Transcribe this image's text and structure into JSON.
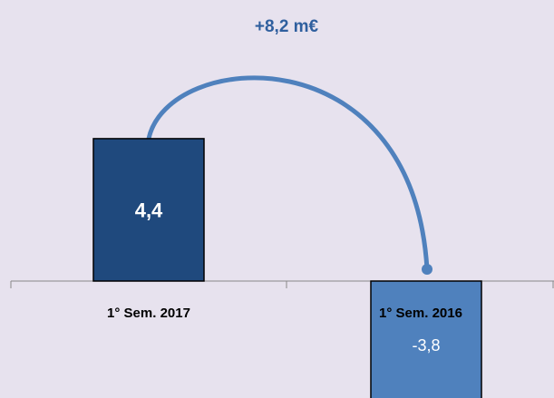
{
  "chart_data": {
    "type": "bar",
    "annotation": "+8,2 m€",
    "categories": [
      "1° Sem. 2017",
      "1° Sem. 2016"
    ],
    "values": [
      4.4,
      -3.8
    ],
    "value_labels": [
      "4,4",
      "-3,8"
    ],
    "colors": [
      "#1f497d",
      "#4f81bd"
    ]
  }
}
